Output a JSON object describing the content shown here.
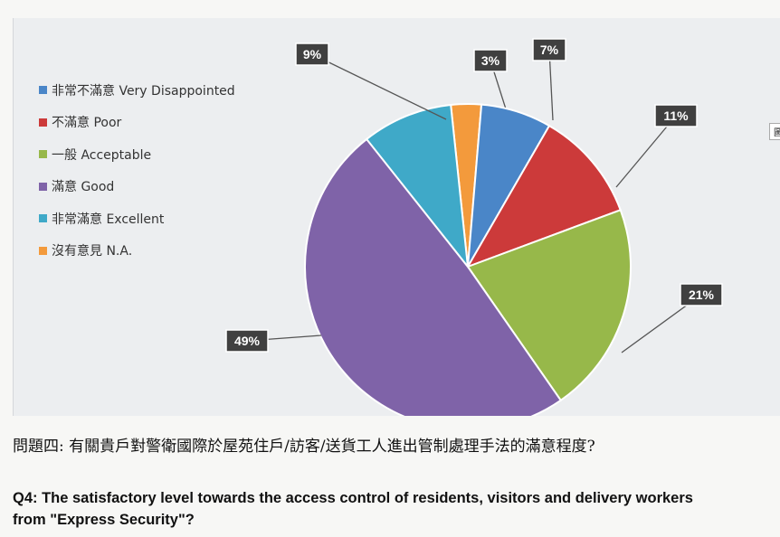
{
  "chart_data": {
    "type": "pie",
    "title": "",
    "slices": [
      {
        "label": "非常不滿意 Very Disappointed",
        "value": 7,
        "data_label": "7%",
        "color": "#4a86c8"
      },
      {
        "label": "不滿意 Poor",
        "value": 11,
        "data_label": "11%",
        "color": "#cc3a3a"
      },
      {
        "label": "一般 Acceptable",
        "value": 21,
        "data_label": "21%",
        "color": "#97b84a"
      },
      {
        "label": "滿意 Good",
        "value": 49,
        "data_label": "49%",
        "color": "#7f63a8"
      },
      {
        "label": "非常滿意 Excellent",
        "value": 9,
        "data_label": "9%",
        "color": "#3fa9c8"
      },
      {
        "label": "沒有意見 N.A.",
        "value": 3,
        "data_label": "3%",
        "color": "#f39a3c"
      }
    ],
    "legend_position": "top-left"
  },
  "side_label": "圖表",
  "caption": {
    "zh": "問題四: 有關貴戶對警衛國際於屋苑住戶/訪客/送貨工人進出管制處理手法的滿意程度?",
    "en": "Q4: The satisfactory level towards the access control of residents, visitors and delivery workers from \"Express Security\"?"
  }
}
